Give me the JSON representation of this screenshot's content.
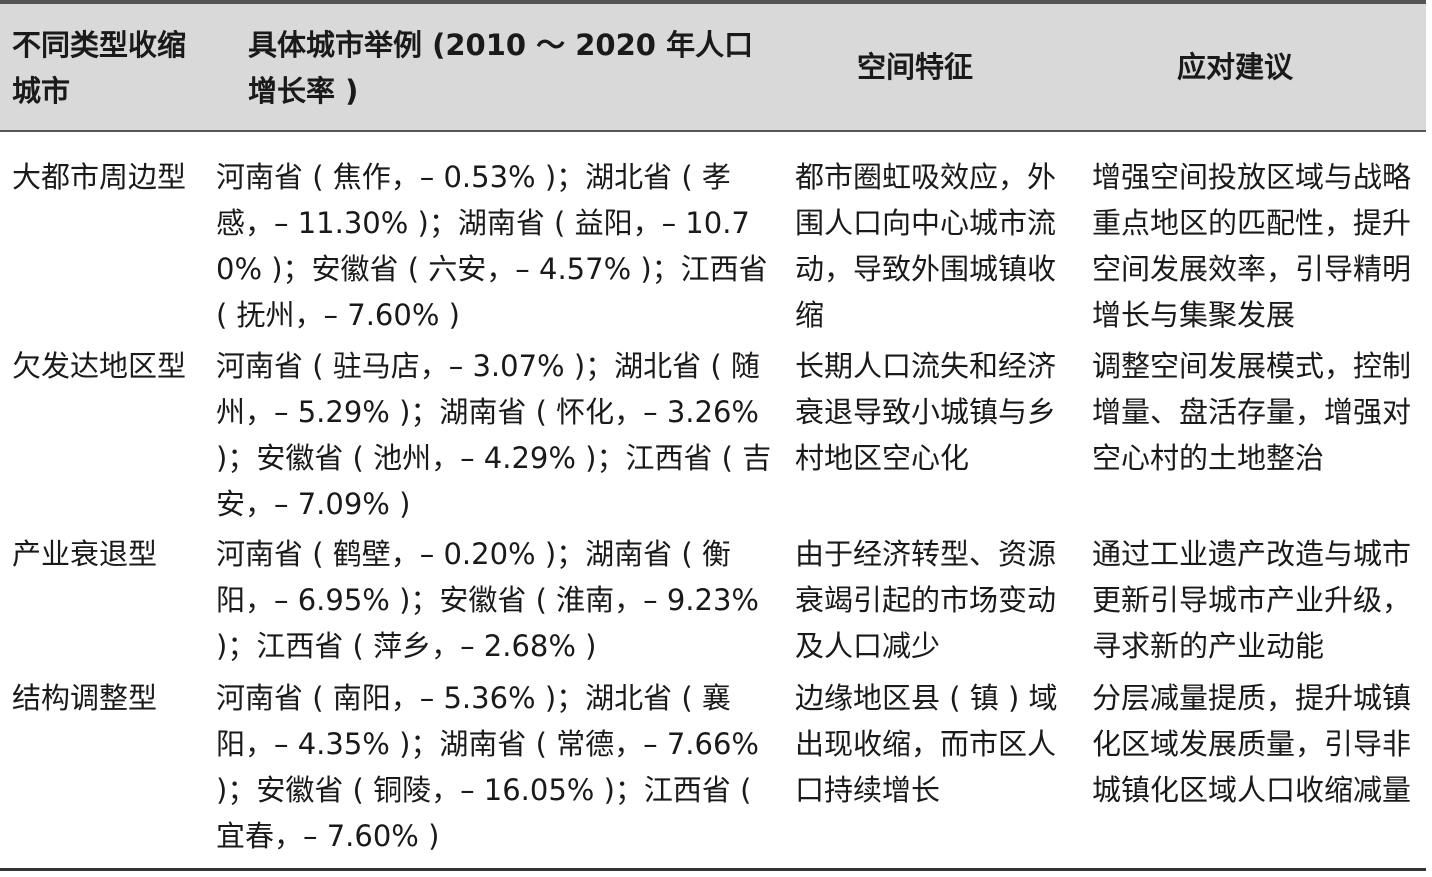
{
  "header": {
    "col1": "不同类型收缩城市",
    "col2": "具体城市举例 (2010 ～ 2020 年人口增长率 )",
    "col3": "空间特征",
    "col4": "应对建议"
  },
  "rows": [
    {
      "type": "大都市周边型",
      "examples": "河南省 ( 焦作，– 0.53% )；湖北省 ( 孝感，– 11.30% )；湖南省 ( 益阳，– 10.70% )；安徽省 ( 六安，– 4.57% )；江西省 ( 抚州，– 7.60% )",
      "spatial": "都市圈虹吸效应，外围人口向中心城市流动，导致外围城镇收缩",
      "advice": "增强空间投放区域与战略重点地区的匹配性，提升空间发展效率，引导精明增长与集聚发展"
    },
    {
      "type": "欠发达地区型",
      "examples": "河南省 ( 驻马店，– 3.07% )；湖北省 ( 随州，– 5.29% )；湖南省 ( 怀化，– 3.26% )；安徽省 ( 池州，– 4.29% )；江西省 ( 吉安，– 7.09% )",
      "spatial": "长期人口流失和经济衰退导致小城镇与乡村地区空心化",
      "advice": "调整空间发展模式，控制增量、盘活存量，增强对空心村的土地整治"
    },
    {
      "type": "产业衰退型",
      "examples": "河南省 ( 鹤壁，– 0.20% )；湖南省 ( 衡阳，– 6.95% )；安徽省 ( 淮南，– 9.23% )；江西省 ( 萍乡，– 2.68% )",
      "spatial": "由于经济转型、资源衰竭引起的市场变动及人口减少",
      "advice": "通过工业遗产改造与城市更新引导城市产业升级，寻求新的产业动能"
    },
    {
      "type": "结构调整型",
      "examples": "河南省 ( 南阳，– 5.36% )；湖北省 ( 襄阳，– 4.35% )；湖南省 ( 常德，– 7.66% )；安徽省 ( 铜陵，– 16.05% )；江西省 ( 宜春，– 7.60% )",
      "spatial": "边缘地区县 ( 镇 ) 域出现收缩，而市区人口持续增长",
      "advice": "分层减量提质，提升城镇化区域发展质量，引导非城镇化区域人口收缩减量"
    }
  ]
}
